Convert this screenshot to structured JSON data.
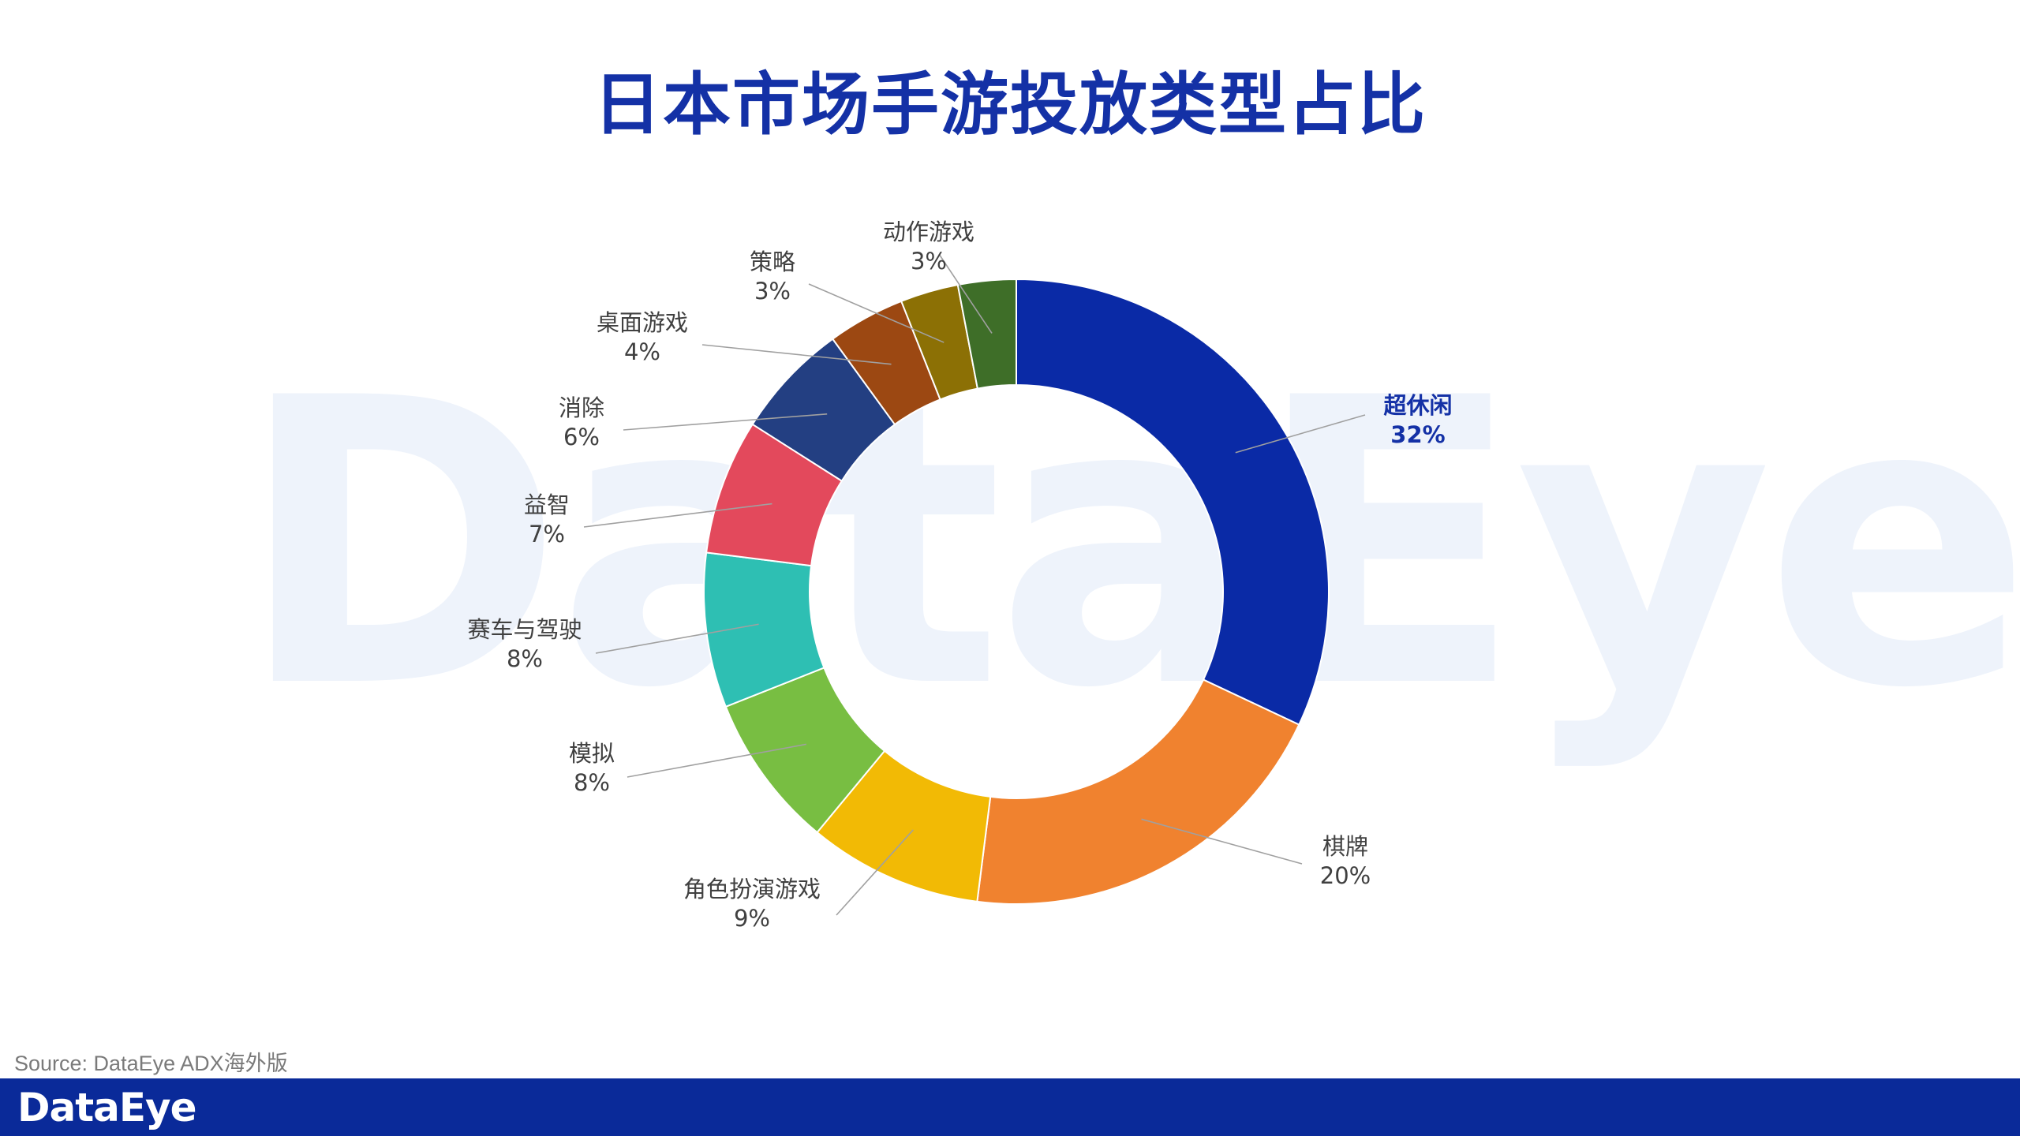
{
  "title": "日本市场手游投放类型占比",
  "watermark": "DataEye",
  "source": "Source: DataEye ADX海外版",
  "footer": {
    "logo": "DataEye"
  },
  "chart_data": {
    "type": "pie",
    "variant": "donut",
    "title": "日本市场手游投放类型占比",
    "unit": "%",
    "slices": [
      {
        "name": "超休闲",
        "label": "32%",
        "value": 32,
        "color": "#0a2aa6",
        "highlight": true
      },
      {
        "name": "棋牌",
        "label": "20%",
        "value": 20,
        "color": "#f0822f"
      },
      {
        "name": "角色扮演游戏",
        "label": "9%",
        "value": 9,
        "color": "#f2ba05"
      },
      {
        "name": "模拟",
        "label": "8%",
        "value": 8,
        "color": "#78be42"
      },
      {
        "name": "赛车与驾驶",
        "label": "8%",
        "value": 8,
        "color": "#2ebfb3"
      },
      {
        "name": "益智",
        "label": "7%",
        "value": 7,
        "color": "#e3495c"
      },
      {
        "name": "消除",
        "label": "6%",
        "value": 6,
        "color": "#233f82"
      },
      {
        "name": "桌面游戏",
        "label": "4%",
        "value": 4,
        "color": "#9c4812"
      },
      {
        "name": "策略",
        "label": "3%",
        "value": 3,
        "color": "#8c7005"
      },
      {
        "name": "动作游戏",
        "label": "3%",
        "value": 3,
        "color": "#3e6e28"
      }
    ]
  }
}
